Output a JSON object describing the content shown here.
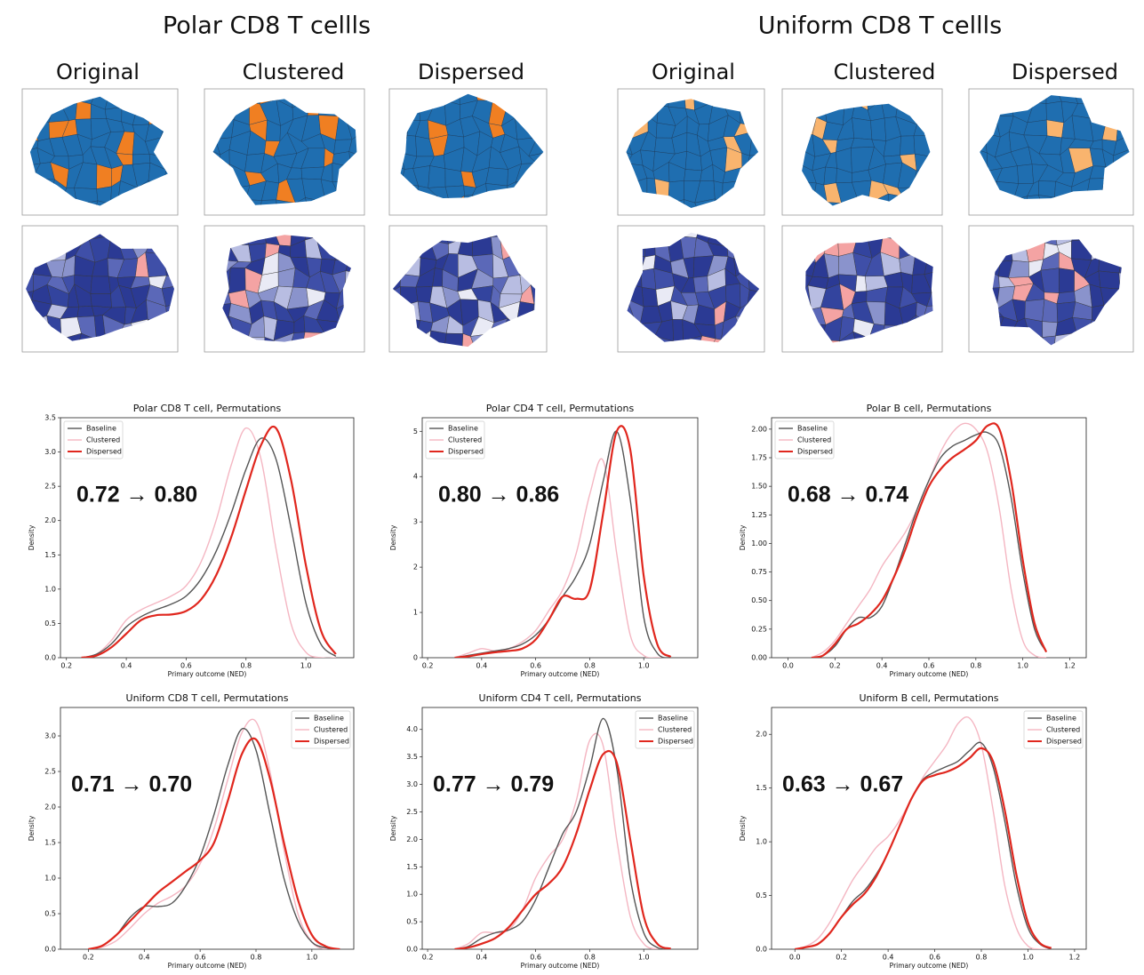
{
  "figure": {
    "groups": [
      {
        "title": "Polar CD8 T cellls",
        "columns": [
          "Original",
          "Clustered",
          "Dispersed"
        ]
      },
      {
        "title": "Uniform CD8 T cellls",
        "columns": [
          "Original",
          "Clustered",
          "Dispersed"
        ]
      }
    ]
  },
  "chart_data": [
    {
      "type": "line",
      "title": "Polar CD8 T cell, Permutations",
      "xlabel": "Primary outcome (NED)",
      "ylabel": "Density",
      "annotation": "0.72 → 0.80",
      "legend": "upper left",
      "xlim": [
        0.18,
        1.16
      ],
      "ylim": [
        0,
        3.5
      ],
      "xticks": [
        0.2,
        0.4,
        0.6,
        0.8,
        {
          "value": 1.0,
          "label": "1.0"
        }
      ],
      "yticks": [
        {
          "value": 0,
          "label": "0.0"
        },
        0.5,
        {
          "value": 1.0,
          "label": "1.0"
        },
        1.5,
        {
          "value": 2.0,
          "label": "2.0"
        },
        2.5,
        {
          "value": 3.0,
          "label": "3.0"
        },
        3.5
      ],
      "x": [
        0.25,
        0.3,
        0.35,
        0.4,
        0.45,
        0.5,
        0.55,
        0.6,
        0.65,
        0.7,
        0.75,
        0.8,
        0.85,
        0.9,
        0.95,
        1.0,
        1.05,
        1.1
      ],
      "series": [
        {
          "name": "Baseline",
          "color": "#555555",
          "values": [
            0,
            0.05,
            0.2,
            0.45,
            0.6,
            0.7,
            0.78,
            0.9,
            1.15,
            1.55,
            2.1,
            2.75,
            3.2,
            2.9,
            1.9,
            0.8,
            0.2,
            0.02
          ]
        },
        {
          "name": "Clustered",
          "color": "#f4b6c2",
          "values": [
            0,
            0.05,
            0.25,
            0.55,
            0.7,
            0.8,
            0.9,
            1.05,
            1.4,
            2.0,
            2.8,
            3.35,
            2.9,
            1.6,
            0.5,
            0.08,
            0,
            0
          ]
        },
        {
          "name": "Dispersed",
          "color": "#e0271e",
          "values": [
            0,
            0.03,
            0.15,
            0.35,
            0.55,
            0.62,
            0.63,
            0.68,
            0.85,
            1.2,
            1.75,
            2.45,
            3.1,
            3.35,
            2.6,
            1.35,
            0.4,
            0.05
          ]
        }
      ]
    },
    {
      "type": "line",
      "title": "Polar CD4 T cell, Permutations",
      "xlabel": "Primary outcome (NED)",
      "ylabel": "Density",
      "annotation": "0.80 → 0.86",
      "legend": "upper left",
      "xlim": [
        0.18,
        1.2
      ],
      "ylim": [
        0,
        5.3
      ],
      "xticks": [
        0.2,
        0.4,
        0.6,
        0.8,
        {
          "value": 1.0,
          "label": "1.0"
        }
      ],
      "yticks": [
        0,
        1,
        2,
        3,
        4,
        5
      ],
      "x": [
        0.3,
        0.35,
        0.4,
        0.45,
        0.5,
        0.55,
        0.6,
        0.65,
        0.7,
        0.75,
        0.8,
        0.85,
        0.9,
        0.95,
        1.0,
        1.05,
        1.1
      ],
      "series": [
        {
          "name": "Baseline",
          "color": "#555555",
          "values": [
            0,
            0.05,
            0.1,
            0.15,
            0.2,
            0.3,
            0.5,
            0.85,
            1.35,
            1.8,
            2.5,
            3.9,
            5.0,
            3.5,
            0.9,
            0.1,
            0
          ]
        },
        {
          "name": "Clustered",
          "color": "#f4b6c2",
          "values": [
            0,
            0.1,
            0.2,
            0.15,
            0.2,
            0.35,
            0.6,
            1.05,
            1.5,
            2.3,
            3.6,
            4.35,
            2.3,
            0.5,
            0.05,
            0,
            0
          ]
        },
        {
          "name": "Dispersed",
          "color": "#e0271e",
          "values": [
            0,
            0.03,
            0.08,
            0.12,
            0.15,
            0.2,
            0.4,
            0.85,
            1.35,
            1.3,
            1.5,
            3.2,
            5.0,
            4.6,
            1.8,
            0.3,
            0.02
          ]
        }
      ]
    },
    {
      "type": "line",
      "title": "Polar B cell, Permutations",
      "xlabel": "Primary outcome (NED)",
      "ylabel": "Density",
      "annotation": "0.68 → 0.74",
      "legend": "upper left",
      "xlim": [
        -0.07,
        1.27
      ],
      "ylim": [
        0,
        2.1
      ],
      "xticks": [
        {
          "value": 0,
          "label": "0.0"
        },
        0.2,
        0.4,
        0.6,
        0.8,
        {
          "value": 1.0,
          "label": "1.0"
        },
        1.2
      ],
      "yticks": [
        {
          "value": 0,
          "label": "0.00"
        },
        0.25,
        {
          "value": 0.5,
          "label": "0.50"
        },
        0.75,
        {
          "value": 1.0,
          "label": "1.00"
        },
        1.25,
        {
          "value": 1.5,
          "label": "1.50"
        },
        1.75,
        {
          "value": 2.0,
          "label": "2.00"
        }
      ],
      "x": [
        0.1,
        0.15,
        0.2,
        0.25,
        0.3,
        0.35,
        0.4,
        0.45,
        0.5,
        0.55,
        0.6,
        0.65,
        0.7,
        0.75,
        0.8,
        0.85,
        0.9,
        0.95,
        1.0,
        1.05,
        1.1
      ],
      "series": [
        {
          "name": "Baseline",
          "color": "#555555",
          "values": [
            0,
            0.02,
            0.1,
            0.25,
            0.35,
            0.35,
            0.45,
            0.7,
            1.0,
            1.3,
            1.55,
            1.75,
            1.85,
            1.9,
            1.95,
            1.97,
            1.85,
            1.4,
            0.75,
            0.25,
            0.05
          ]
        },
        {
          "name": "Clustered",
          "color": "#f4b6c2",
          "values": [
            0,
            0.05,
            0.15,
            0.3,
            0.45,
            0.6,
            0.8,
            0.95,
            1.1,
            1.3,
            1.55,
            1.8,
            1.97,
            2.05,
            2.0,
            1.8,
            1.3,
            0.6,
            0.15,
            0.02,
            0
          ]
        },
        {
          "name": "Dispersed",
          "color": "#e0271e",
          "values": [
            0,
            0.02,
            0.12,
            0.25,
            0.3,
            0.38,
            0.5,
            0.7,
            0.95,
            1.25,
            1.5,
            1.65,
            1.75,
            1.82,
            1.9,
            2.03,
            2.0,
            1.55,
            0.85,
            0.3,
            0.05
          ]
        }
      ]
    },
    {
      "type": "line",
      "title": "Uniform CD8 T cell, Permutations",
      "xlabel": "Primary outcome (NED)",
      "ylabel": "Density",
      "annotation": "0.71 → 0.70",
      "legend": "upper right",
      "xlim": [
        0.1,
        1.15
      ],
      "ylim": [
        0,
        3.4
      ],
      "xticks": [
        0.2,
        0.4,
        0.6,
        0.8,
        {
          "value": 1.0,
          "label": "1.0"
        }
      ],
      "yticks": [
        {
          "value": 0,
          "label": "0.0"
        },
        0.5,
        {
          "value": 1.0,
          "label": "1.0"
        },
        1.5,
        {
          "value": 2.0,
          "label": "2.0"
        },
        2.5,
        {
          "value": 3.0,
          "label": "3.0"
        }
      ],
      "x": [
        0.2,
        0.25,
        0.3,
        0.35,
        0.4,
        0.45,
        0.5,
        0.55,
        0.6,
        0.65,
        0.7,
        0.75,
        0.8,
        0.85,
        0.9,
        0.95,
        1.0,
        1.05,
        1.1
      ],
      "series": [
        {
          "name": "Baseline",
          "color": "#555555",
          "values": [
            0,
            0.05,
            0.2,
            0.45,
            0.6,
            0.6,
            0.65,
            0.9,
            1.3,
            1.9,
            2.6,
            3.1,
            2.8,
            1.9,
            1.0,
            0.4,
            0.1,
            0.02,
            0
          ]
        },
        {
          "name": "Clustered",
          "color": "#f4b6c2",
          "values": [
            0,
            0.03,
            0.12,
            0.3,
            0.5,
            0.65,
            0.75,
            0.9,
            1.2,
            1.7,
            2.4,
            3.05,
            3.2,
            2.5,
            1.4,
            0.5,
            0.1,
            0,
            0
          ]
        },
        {
          "name": "Dispersed",
          "color": "#e0271e",
          "values": [
            0,
            0.05,
            0.2,
            0.4,
            0.6,
            0.8,
            0.95,
            1.1,
            1.25,
            1.5,
            2.1,
            2.75,
            2.95,
            2.4,
            1.5,
            0.7,
            0.2,
            0.04,
            0
          ]
        }
      ]
    },
    {
      "type": "line",
      "title": "Uniform CD4 T cell, Permutations",
      "xlabel": "Primary outcome (NED)",
      "ylabel": "Density",
      "annotation": "0.77 → 0.79",
      "legend": "upper right",
      "xlim": [
        0.18,
        1.2
      ],
      "ylim": [
        0,
        4.4
      ],
      "xticks": [
        0.2,
        0.4,
        0.6,
        0.8,
        {
          "value": 1.0,
          "label": "1.0"
        }
      ],
      "yticks": [
        {
          "value": 0,
          "label": "0.0"
        },
        0.5,
        {
          "value": 1.0,
          "label": "1.0"
        },
        1.5,
        {
          "value": 2.0,
          "label": "2.0"
        },
        2.5,
        {
          "value": 3.0,
          "label": "3.0"
        },
        3.5,
        {
          "value": 4.0,
          "label": "4.0"
        }
      ],
      "x": [
        0.3,
        0.35,
        0.4,
        0.45,
        0.5,
        0.55,
        0.6,
        0.65,
        0.7,
        0.75,
        0.8,
        0.85,
        0.9,
        0.95,
        1.0,
        1.05,
        1.1
      ],
      "series": [
        {
          "name": "Baseline",
          "color": "#555555",
          "values": [
            0,
            0.05,
            0.2,
            0.3,
            0.35,
            0.5,
            0.9,
            1.5,
            2.1,
            2.5,
            3.3,
            4.2,
            3.3,
            1.3,
            0.3,
            0.03,
            0
          ]
        },
        {
          "name": "Clustered",
          "color": "#f4b6c2",
          "values": [
            0,
            0.1,
            0.3,
            0.3,
            0.35,
            0.7,
            1.3,
            1.7,
            2.0,
            2.7,
            3.8,
            3.7,
            2.0,
            0.6,
            0.1,
            0,
            0
          ]
        },
        {
          "name": "Dispersed",
          "color": "#e0271e",
          "values": [
            0,
            0.03,
            0.1,
            0.2,
            0.4,
            0.7,
            1.0,
            1.2,
            1.5,
            2.1,
            2.9,
            3.55,
            3.4,
            2.0,
            0.6,
            0.1,
            0.01
          ]
        }
      ]
    },
    {
      "type": "line",
      "title": "Uniform B cell, Permutations",
      "xlabel": "Primary outcome (NED)",
      "ylabel": "Density",
      "annotation": "0.63 → 0.67",
      "legend": "upper right",
      "xlim": [
        -0.1,
        1.25
      ],
      "ylim": [
        0,
        2.25
      ],
      "xticks": [
        {
          "value": 0,
          "label": "0.0"
        },
        0.2,
        0.4,
        0.6,
        0.8,
        {
          "value": 1.0,
          "label": "1.0"
        },
        1.2
      ],
      "yticks": [
        {
          "value": 0,
          "label": "0.0"
        },
        0.5,
        {
          "value": 1.0,
          "label": "1.0"
        },
        1.5,
        {
          "value": 2.0,
          "label": "2.0"
        }
      ],
      "x": [
        0,
        0.05,
        0.1,
        0.15,
        0.2,
        0.25,
        0.3,
        0.35,
        0.4,
        0.45,
        0.5,
        0.55,
        0.6,
        0.65,
        0.7,
        0.75,
        0.8,
        0.85,
        0.9,
        0.95,
        1.0,
        1.05,
        1.1
      ],
      "series": [
        {
          "name": "Baseline",
          "color": "#555555",
          "values": [
            0,
            0.02,
            0.05,
            0.15,
            0.3,
            0.45,
            0.55,
            0.7,
            0.9,
            1.15,
            1.4,
            1.58,
            1.65,
            1.7,
            1.75,
            1.85,
            1.92,
            1.7,
            1.2,
            0.6,
            0.2,
            0.05,
            0
          ]
        },
        {
          "name": "Clustered",
          "color": "#f4b6c2",
          "values": [
            0,
            0.03,
            0.1,
            0.25,
            0.45,
            0.65,
            0.8,
            0.95,
            1.05,
            1.2,
            1.4,
            1.6,
            1.75,
            1.9,
            2.1,
            2.15,
            1.9,
            1.3,
            0.6,
            0.2,
            0.03,
            0,
            0
          ]
        },
        {
          "name": "Dispersed",
          "color": "#e0271e",
          "values": [
            0,
            0.02,
            0.05,
            0.15,
            0.3,
            0.42,
            0.52,
            0.68,
            0.9,
            1.15,
            1.4,
            1.57,
            1.62,
            1.65,
            1.7,
            1.78,
            1.87,
            1.75,
            1.3,
            0.7,
            0.25,
            0.06,
            0.01
          ]
        }
      ]
    }
  ]
}
